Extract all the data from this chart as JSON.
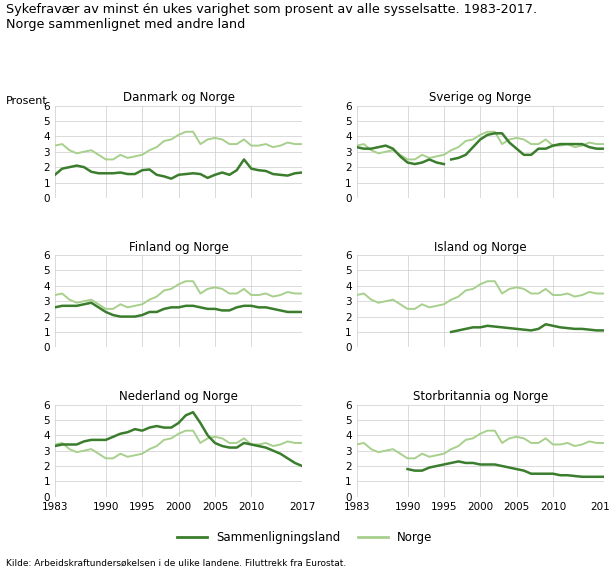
{
  "title_line1": "Sykefravær av minst én ukes varighet som prosent av alle sysselsatte. 1983-2017.",
  "title_line2": "Norge sammenlignet med andre land",
  "ylabel": "Prosent",
  "source": "Kilde: Arbeidskraftundersøkelsen i de ulike landene. Filuttrekk fra Eurostat.",
  "legend_country": "Sammenligningsland",
  "legend_norge": "Norge",
  "color_country": "#3a7d2c",
  "color_norge": "#a8d08d",
  "years": [
    1983,
    1984,
    1985,
    1986,
    1987,
    1988,
    1989,
    1990,
    1991,
    1992,
    1993,
    1994,
    1995,
    1996,
    1997,
    1998,
    1999,
    2000,
    2001,
    2002,
    2003,
    2004,
    2005,
    2006,
    2007,
    2008,
    2009,
    2010,
    2011,
    2012,
    2013,
    2014,
    2015,
    2016,
    2017
  ],
  "norge": [
    3.4,
    3.5,
    3.1,
    2.9,
    3.0,
    3.1,
    2.8,
    2.5,
    2.5,
    2.8,
    2.6,
    2.7,
    2.8,
    3.1,
    3.3,
    3.7,
    3.8,
    4.1,
    4.3,
    4.3,
    3.5,
    3.8,
    3.9,
    3.8,
    3.5,
    3.5,
    3.8,
    3.4,
    3.4,
    3.5,
    3.3,
    3.4,
    3.6,
    3.5,
    3.5
  ],
  "subplots": [
    {
      "title": "Danmark og Norge",
      "country": [
        1.5,
        1.9,
        2.0,
        2.1,
        2.0,
        1.7,
        1.6,
        1.6,
        1.6,
        1.65,
        1.55,
        1.55,
        1.8,
        1.85,
        1.5,
        1.4,
        1.25,
        1.5,
        1.55,
        1.6,
        1.55,
        1.3,
        1.5,
        1.65,
        1.5,
        1.8,
        2.5,
        1.9,
        1.8,
        1.75,
        1.55,
        1.5,
        1.45,
        1.6,
        1.65
      ],
      "extra_series": []
    },
    {
      "title": "Sverige og Norge",
      "country": [
        null,
        null,
        null,
        null,
        null,
        null,
        null,
        null,
        null,
        null,
        null,
        null,
        null,
        2.5,
        2.6,
        2.8,
        3.3,
        3.8,
        4.1,
        4.2,
        4.2,
        3.6,
        3.2,
        2.8,
        2.8,
        3.2,
        3.2,
        3.4,
        3.5,
        3.5,
        3.5,
        3.5,
        3.3,
        3.2,
        3.2
      ],
      "extra_series": [
        [
          3.3,
          3.2,
          3.2,
          3.3,
          3.4,
          3.2,
          2.7,
          2.3,
          2.2,
          2.3,
          2.5,
          2.3,
          2.2,
          null,
          null,
          null,
          null,
          null,
          null,
          null,
          null,
          null,
          null,
          null,
          null,
          null,
          null,
          null,
          null,
          null,
          null,
          null,
          null,
          null,
          null
        ]
      ]
    },
    {
      "title": "Finland og Norge",
      "country": [
        2.6,
        2.7,
        2.7,
        2.7,
        2.8,
        2.9,
        2.6,
        2.3,
        2.1,
        2.0,
        2.0,
        2.0,
        2.1,
        2.3,
        2.3,
        2.5,
        2.6,
        2.6,
        2.7,
        2.7,
        2.6,
        2.5,
        2.5,
        2.4,
        2.4,
        2.6,
        2.7,
        2.7,
        2.6,
        2.6,
        2.5,
        2.4,
        2.3,
        2.3,
        2.3
      ],
      "extra_series": []
    },
    {
      "title": "Island og Norge",
      "country": [
        null,
        null,
        null,
        null,
        null,
        null,
        null,
        null,
        null,
        null,
        null,
        null,
        null,
        1.0,
        1.1,
        1.2,
        1.3,
        1.3,
        1.4,
        1.35,
        1.3,
        1.25,
        1.2,
        1.15,
        1.1,
        1.2,
        1.5,
        1.4,
        1.3,
        1.25,
        1.2,
        1.2,
        1.15,
        1.1,
        1.1
      ],
      "extra_series": []
    },
    {
      "title": "Nederland og Norge",
      "country": [
        3.3,
        3.4,
        3.4,
        3.4,
        3.6,
        3.7,
        3.7,
        3.7,
        3.9,
        4.1,
        4.2,
        4.4,
        4.3,
        4.5,
        4.6,
        4.5,
        4.5,
        4.8,
        5.3,
        5.5,
        4.8,
        4.0,
        3.5,
        3.3,
        3.2,
        3.2,
        3.5,
        3.4,
        3.3,
        3.2,
        3.0,
        2.8,
        2.5,
        2.2,
        2.0
      ],
      "extra_series": []
    },
    {
      "title": "Storbritannia og Norge",
      "country": [
        null,
        null,
        null,
        null,
        null,
        null,
        null,
        1.8,
        1.7,
        1.7,
        1.9,
        2.0,
        2.1,
        2.2,
        2.3,
        2.2,
        2.2,
        2.1,
        2.1,
        2.1,
        2.0,
        1.9,
        1.8,
        1.7,
        1.5,
        1.5,
        1.5,
        1.5,
        1.4,
        1.4,
        1.35,
        1.3,
        1.3,
        1.3,
        1.3
      ],
      "extra_series": []
    }
  ],
  "ylim": [
    0,
    6
  ],
  "yticks": [
    0,
    1,
    2,
    3,
    4,
    5,
    6
  ],
  "xticks": [
    1983,
    1990,
    1995,
    2000,
    2005,
    2010,
    2017
  ],
  "xtick_labels": [
    "1983",
    "1990",
    "1995",
    "2000",
    "2005",
    "2010",
    "2017"
  ],
  "grid_color": "#cccccc",
  "bg_color": "#ffffff",
  "linewidth_country": 1.8,
  "linewidth_norge": 1.4
}
